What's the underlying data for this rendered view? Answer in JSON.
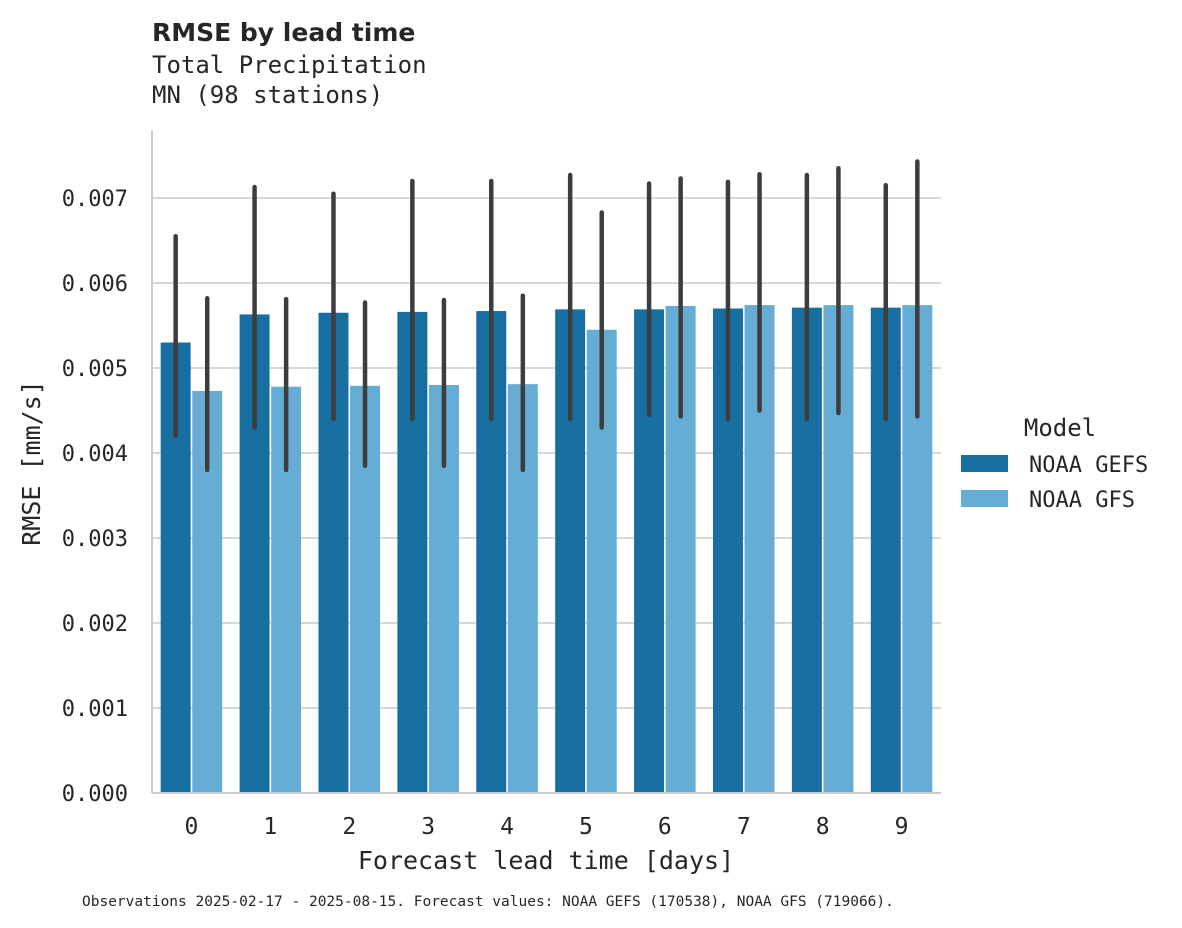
{
  "chart_data": {
    "type": "bar",
    "title": "RMSE by lead time",
    "subtitle_lines": [
      "Total Precipitation",
      "MN (98 stations)"
    ],
    "xlabel": "Forecast lead time [days]",
    "ylabel": "RMSE [mm/s]",
    "ylim": [
      0,
      0.0078
    ],
    "yticks": [
      0,
      0.001,
      0.002,
      0.003,
      0.004,
      0.005,
      0.006,
      0.007
    ],
    "ytick_labels": [
      "0.000",
      "0.001",
      "0.002",
      "0.003",
      "0.004",
      "0.005",
      "0.006",
      "0.007"
    ],
    "grid": "horizontal",
    "categories": [
      "0",
      "1",
      "2",
      "3",
      "4",
      "5",
      "6",
      "7",
      "8",
      "9"
    ],
    "legend": {
      "title": "Model",
      "placement": "right-outside"
    },
    "series": [
      {
        "name": "NOAA GEFS",
        "color": "#176fa1",
        "values": [
          0.0053,
          0.00563,
          0.00565,
          0.00566,
          0.00567,
          0.00569,
          0.00569,
          0.0057,
          0.00571,
          0.00571
        ],
        "err_low": [
          0.0042,
          0.0043,
          0.0044,
          0.0044,
          0.0044,
          0.0044,
          0.00445,
          0.0044,
          0.0044,
          0.0044
        ],
        "err_high": [
          0.00655,
          0.00713,
          0.00705,
          0.0072,
          0.0072,
          0.00727,
          0.00717,
          0.00719,
          0.00727,
          0.00715
        ]
      },
      {
        "name": "NOAA GFS",
        "color": "#66add6",
        "values": [
          0.00473,
          0.00478,
          0.00479,
          0.0048,
          0.00481,
          0.00545,
          0.00573,
          0.00574,
          0.00574,
          0.00574
        ],
        "err_low": [
          0.0038,
          0.0038,
          0.00385,
          0.00385,
          0.0038,
          0.0043,
          0.00443,
          0.0045,
          0.00447,
          0.00443
        ],
        "err_high": [
          0.00582,
          0.00581,
          0.00577,
          0.0058,
          0.00585,
          0.00683,
          0.00723,
          0.00728,
          0.00735,
          0.00743
        ]
      }
    ],
    "footnote": "Observations 2025-02-17 - 2025-08-15. Forecast values: NOAA GEFS (170538), NOAA GFS (719066)."
  }
}
